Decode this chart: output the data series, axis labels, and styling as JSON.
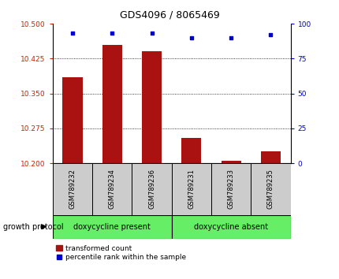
{
  "title": "GDS4096 / 8065469",
  "samples": [
    "GSM789232",
    "GSM789234",
    "GSM789236",
    "GSM789231",
    "GSM789233",
    "GSM789235"
  ],
  "bar_values": [
    10.385,
    10.455,
    10.44,
    10.255,
    10.205,
    10.225
  ],
  "percentile_values": [
    93,
    93,
    93,
    90,
    90,
    92
  ],
  "ylim_left": [
    10.2,
    10.5
  ],
  "ylim_right": [
    0,
    100
  ],
  "yticks_left": [
    10.2,
    10.275,
    10.35,
    10.425,
    10.5
  ],
  "yticks_right": [
    0,
    25,
    50,
    75,
    100
  ],
  "bar_color": "#aa1111",
  "dot_color": "#0000cc",
  "group1_label": "doxycycline present",
  "group2_label": "doxycycline absent",
  "group1_indices": [
    0,
    1,
    2
  ],
  "group2_indices": [
    3,
    4,
    5
  ],
  "group_bg_color": "#66ee66",
  "sample_box_color": "#cccccc",
  "protocol_label": "growth protocol",
  "legend_bar_label": "transformed count",
  "legend_dot_label": "percentile rank within the sample",
  "left_tick_color": "#cc2200",
  "right_tick_color": "#0000cc",
  "bar_width": 0.5,
  "background_color": "#ffffff"
}
